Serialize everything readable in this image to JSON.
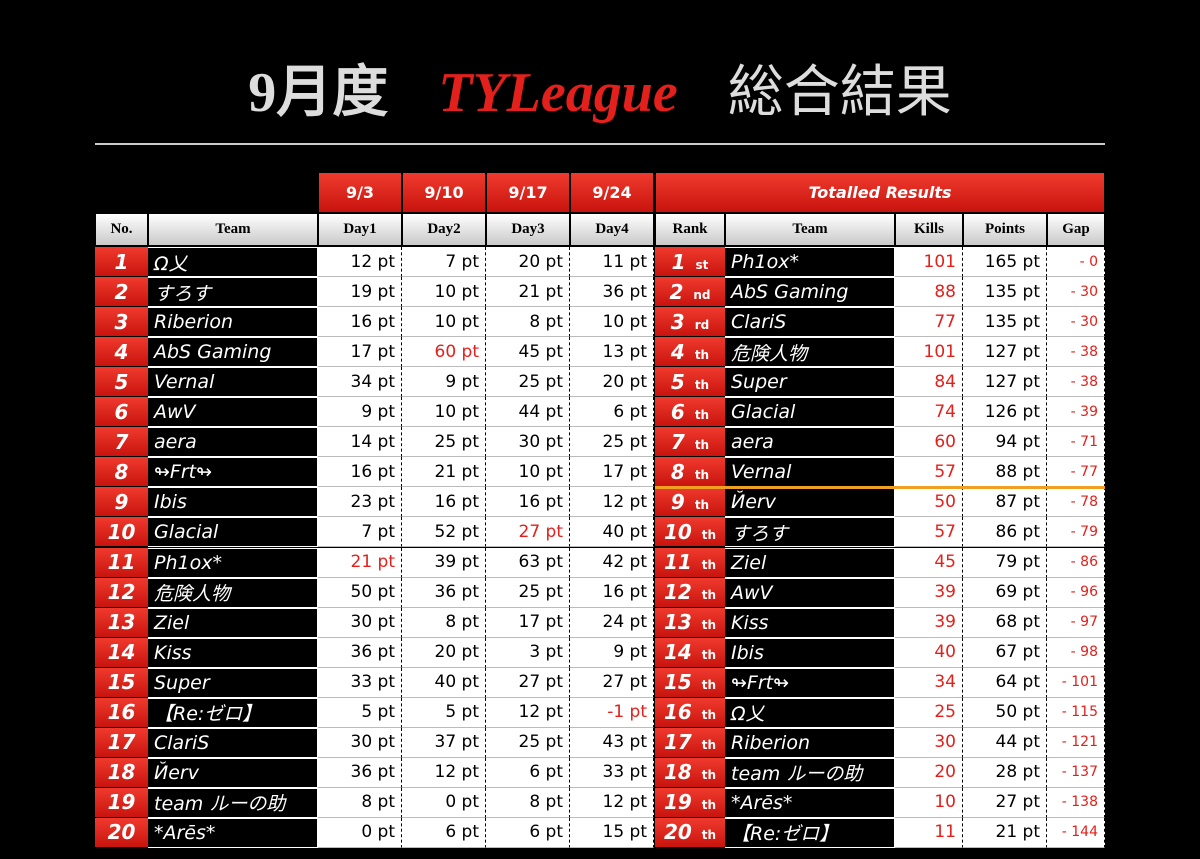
{
  "title": {
    "month": "9月度",
    "league": "TYLeague",
    "subject": "総合結果"
  },
  "left": {
    "dates": [
      "9/3",
      "9/10",
      "9/17",
      "9/24"
    ],
    "columns": [
      "No.",
      "Team",
      "Day1",
      "Day2",
      "Day3",
      "Day4"
    ],
    "rows": [
      [
        "1",
        "Ω乂",
        "12 pt",
        "7 pt",
        "20 pt",
        "11 pt"
      ],
      [
        "2",
        "すろす",
        "19 pt",
        "10 pt",
        "21 pt",
        "36 pt"
      ],
      [
        "3",
        "Riberion",
        "16 pt",
        "10 pt",
        "8 pt",
        "10 pt"
      ],
      [
        "4",
        "AbS Gaming",
        "17 pt",
        "60 pt",
        "45 pt",
        "13 pt"
      ],
      [
        "5",
        "Vernal",
        "34 pt",
        "9 pt",
        "25 pt",
        "20 pt"
      ],
      [
        "6",
        "AwV",
        "9 pt",
        "10 pt",
        "44 pt",
        "6 pt"
      ],
      [
        "7",
        "aera",
        "14 pt",
        "25 pt",
        "30 pt",
        "25 pt"
      ],
      [
        "8",
        "↬Frt↬",
        "16 pt",
        "21 pt",
        "10 pt",
        "17 pt"
      ],
      [
        "9",
        "Ibis",
        "23 pt",
        "16 pt",
        "16 pt",
        "12 pt"
      ],
      [
        "10",
        "Glacial",
        "7 pt",
        "52 pt",
        "27 pt",
        "40 pt"
      ],
      [
        "11",
        "Ph1ox*",
        "21 pt",
        "39 pt",
        "63 pt",
        "42 pt"
      ],
      [
        "12",
        "危険人物",
        "50 pt",
        "36 pt",
        "25 pt",
        "16 pt"
      ],
      [
        "13",
        "Ziel",
        "30 pt",
        "8 pt",
        "17 pt",
        "24 pt"
      ],
      [
        "14",
        "Kiss",
        "36 pt",
        "20 pt",
        "3 pt",
        "9 pt"
      ],
      [
        "15",
        "Super",
        "33 pt",
        "40 pt",
        "27 pt",
        "27 pt"
      ],
      [
        "16",
        "【Re:ゼロ】",
        "5 pt",
        "5 pt",
        "12 pt",
        "-1 pt"
      ],
      [
        "17",
        "ClariS",
        "30 pt",
        "37 pt",
        "25 pt",
        "43 pt"
      ],
      [
        "18",
        "Йerv",
        "36 pt",
        "12 pt",
        "6 pt",
        "33 pt"
      ],
      [
        "19",
        "team ルーの助",
        "8 pt",
        "0 pt",
        "8 pt",
        "12 pt"
      ],
      [
        "20",
        "*Arēs*",
        "0 pt",
        "6 pt",
        "6 pt",
        "15 pt"
      ]
    ]
  },
  "right": {
    "title": "Totalled Results",
    "columns": [
      "Rank",
      "Team",
      "Kills",
      "Points",
      "Gap"
    ],
    "rows": [
      [
        "1",
        "st",
        "Ph1ox*",
        "101",
        "165 pt",
        "- 0"
      ],
      [
        "2",
        "nd",
        "AbS Gaming",
        "88",
        "135 pt",
        "- 30"
      ],
      [
        "3",
        "rd",
        "ClariS",
        "77",
        "135 pt",
        "- 30"
      ],
      [
        "4",
        "th",
        "危険人物",
        "101",
        "127 pt",
        "- 38"
      ],
      [
        "5",
        "th",
        "Super",
        "84",
        "127 pt",
        "- 38"
      ],
      [
        "6",
        "th",
        "Glacial",
        "74",
        "126 pt",
        "- 39"
      ],
      [
        "7",
        "th",
        "aera",
        "60",
        "94 pt",
        "- 71"
      ],
      [
        "8",
        "th",
        "Vernal",
        "57",
        "88 pt",
        "- 77"
      ],
      [
        "9",
        "th",
        "Йerv",
        "50",
        "87 pt",
        "- 78"
      ],
      [
        "10",
        "th",
        "すろす",
        "57",
        "86 pt",
        "- 79"
      ],
      [
        "11",
        "th",
        "Ziel",
        "45",
        "79 pt",
        "- 86"
      ],
      [
        "12",
        "th",
        "AwV",
        "39",
        "69 pt",
        "- 96"
      ],
      [
        "13",
        "th",
        "Kiss",
        "39",
        "68 pt",
        "- 97"
      ],
      [
        "14",
        "th",
        "Ibis",
        "40",
        "67 pt",
        "- 98"
      ],
      [
        "15",
        "th",
        "↬Frt↬",
        "34",
        "64 pt",
        "- 101"
      ],
      [
        "16",
        "th",
        "Ω乂",
        "25",
        "50 pt",
        "- 115"
      ],
      [
        "17",
        "th",
        "Riberion",
        "30",
        "44 pt",
        "- 121"
      ],
      [
        "18",
        "th",
        "team ルーの助",
        "20",
        "28 pt",
        "- 137"
      ],
      [
        "19",
        "th",
        "*Arēs*",
        "10",
        "27 pt",
        "- 138"
      ],
      [
        "20",
        "th",
        "【Re:ゼロ】",
        "11",
        "21 pt",
        "- 144"
      ]
    ]
  }
}
